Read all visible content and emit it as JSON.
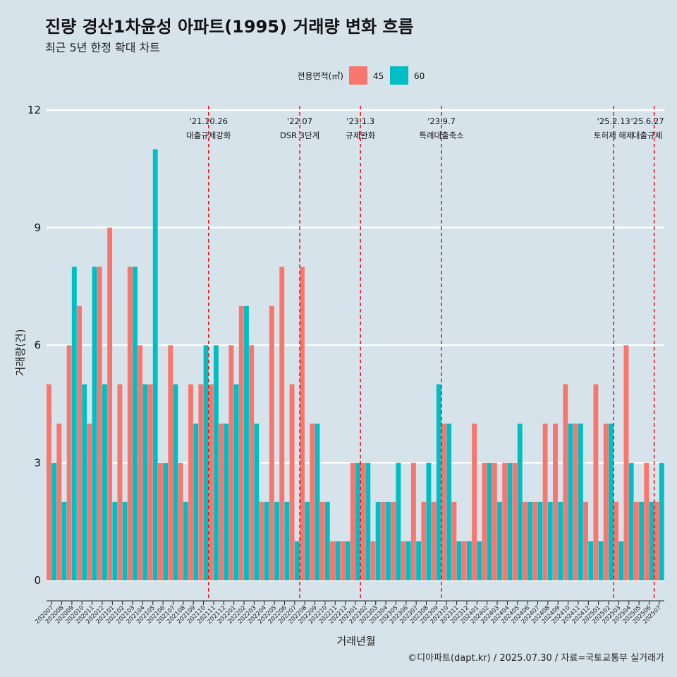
{
  "title": "진량 경산1차윤성 아파트(1995) 거래량 변화 흐름",
  "subtitle": "최근 5년 한정 확대 차트",
  "caption": "©디아파트(dapt.kr) / 2025.07.30 / 자료=국토교통부 실거래가",
  "chart_data": {
    "type": "bar",
    "xlabel": "거래년월",
    "ylabel": "거래량(건)",
    "ylim": [
      0,
      12
    ],
    "yticks": [
      0,
      3,
      6,
      9,
      12
    ],
    "legend": {
      "title": "전용면적(㎡)",
      "position": "top"
    },
    "categories": [
      "202007",
      "202008",
      "202009",
      "202010",
      "202011",
      "202012",
      "202101",
      "202102",
      "202103",
      "202104",
      "202105",
      "202106",
      "202107",
      "202108",
      "202109",
      "202110",
      "202111",
      "202112",
      "202201",
      "202202",
      "202203",
      "202204",
      "202205",
      "202206",
      "202207",
      "202208",
      "202209",
      "202210",
      "202211",
      "202212",
      "202301",
      "202302",
      "202303",
      "202304",
      "202305",
      "202306",
      "202307",
      "202308",
      "202309",
      "202310",
      "202311",
      "202312",
      "202401",
      "202402",
      "202403",
      "202404",
      "202405",
      "202406",
      "202407",
      "202408",
      "202409",
      "202410",
      "202411",
      "202412",
      "202501",
      "202502",
      "202503",
      "202504",
      "202505",
      "202506",
      "202507"
    ],
    "series": [
      {
        "name": "45",
        "color": "#f8766d",
        "values": [
          5,
          4,
          6,
          7,
          4,
          8,
          9,
          5,
          8,
          6,
          5,
          3,
          6,
          3,
          5,
          5,
          5,
          4,
          6,
          7,
          6,
          2,
          7,
          8,
          5,
          8,
          4,
          2,
          1,
          1,
          3,
          3,
          1,
          2,
          2,
          1,
          3,
          2,
          2,
          4,
          2,
          1,
          4,
          3,
          3,
          3,
          3,
          2,
          2,
          4,
          4,
          5,
          4,
          2,
          5,
          4,
          2,
          6,
          2,
          3,
          2
        ]
      },
      {
        "name": "60",
        "color": "#00bfc4",
        "values": [
          3,
          2,
          8,
          5,
          8,
          5,
          2,
          2,
          8,
          5,
          11,
          3,
          5,
          2,
          4,
          6,
          6,
          4,
          5,
          7,
          4,
          2,
          2,
          2,
          1,
          2,
          4,
          2,
          1,
          1,
          3,
          3,
          2,
          2,
          3,
          1,
          1,
          3,
          5,
          4,
          1,
          1,
          1,
          3,
          2,
          3,
          4,
          2,
          2,
          2,
          2,
          4,
          4,
          1,
          1,
          4,
          1,
          3,
          2,
          2,
          3
        ]
      }
    ],
    "events": [
      {
        "date": "'21.10.26",
        "label": "대출규제강화",
        "after": "202110"
      },
      {
        "date": "'22.07",
        "label": "DSR 3단계",
        "after": "202207"
      },
      {
        "date": "'23.1.3",
        "label": "규제완화",
        "after": "202301"
      },
      {
        "date": "'23.9.7",
        "label": "특례대출축소",
        "after": "202309"
      },
      {
        "date": "'25.2.13",
        "label": "토허제 해제",
        "after": "202502"
      },
      {
        "date": "'25.6.27",
        "label": "대출규제",
        "after": "202506"
      }
    ]
  }
}
